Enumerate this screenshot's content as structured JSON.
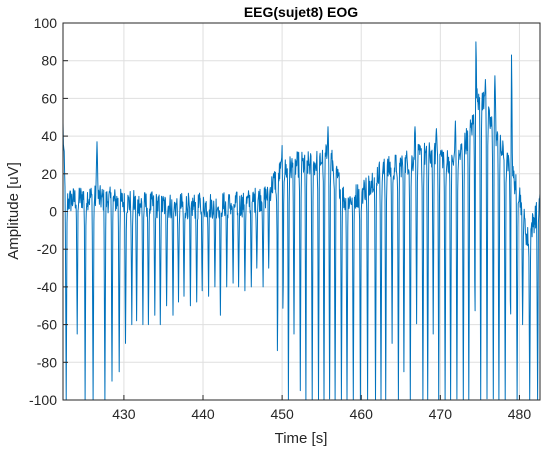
{
  "chart_data": {
    "type": "line",
    "title": "EEG(sujet8) EOG",
    "xlabel": "Time [s]",
    "ylabel": "Amplitude [uV]",
    "xlim": [
      422.3,
      482.6
    ],
    "ylim": [
      -100,
      100
    ],
    "xticks": [
      430,
      440,
      450,
      460,
      470,
      480
    ],
    "yticks": [
      -100,
      -80,
      -60,
      -40,
      -20,
      0,
      20,
      40,
      60,
      80,
      100
    ],
    "grid": true,
    "series": [
      {
        "color": "#0072BD",
        "sample_rate_hz": 20,
        "trough_times": [
          422.7,
          424.1,
          425.1,
          426.1,
          427.6,
          428.5,
          429.4,
          430.2,
          431.0,
          431.6,
          432.4,
          433.1,
          433.9,
          434.6,
          435.4,
          436.2,
          436.9,
          437.6,
          438.4,
          439.2,
          439.9,
          440.7,
          441.5,
          442.2,
          443.0,
          443.8,
          444.5,
          445.3,
          446.1,
          446.8,
          447.6,
          448.3,
          449.4,
          450.1,
          450.8,
          451.5,
          452.3,
          453.0,
          453.8,
          454.6,
          455.3,
          456.0,
          456.7,
          457.5,
          458.2,
          459.0,
          459.9,
          460.8,
          461.8,
          462.5,
          463.1,
          463.9,
          464.7,
          465.4,
          466.2,
          467.0,
          467.8,
          468.4,
          469.1,
          469.8,
          470.6,
          471.3,
          472.1,
          472.9,
          473.6,
          474.4,
          475.1,
          475.9,
          476.7,
          477.4,
          478.2,
          478.9,
          479.7,
          480.4,
          481.3,
          482.3
        ],
        "trough_depths": [
          -100,
          -65,
          -100,
          -100,
          -100,
          -90,
          -85,
          -70,
          -60,
          -58,
          -60,
          -60,
          -55,
          -60,
          -50,
          -55,
          -48,
          -45,
          -50,
          -48,
          -42,
          -45,
          -40,
          -55,
          -40,
          -38,
          -40,
          -42,
          -40,
          -30,
          -40,
          -30,
          -100,
          -80,
          -100,
          -65,
          -95,
          -100,
          -100,
          -100,
          -100,
          -100,
          -100,
          -100,
          -100,
          -100,
          -100,
          -100,
          -100,
          -100,
          -100,
          -70,
          -100,
          -85,
          -100,
          -60,
          -100,
          -100,
          -65,
          -100,
          -100,
          -100,
          -100,
          -100,
          -100,
          -100,
          -100,
          -100,
          -100,
          -100,
          -100,
          -100,
          -100,
          -60,
          -100,
          -100
        ],
        "baseline_anchors": [
          [
            422.3,
            45
          ],
          [
            422.6,
            5
          ],
          [
            425.0,
            8
          ],
          [
            430.0,
            5
          ],
          [
            435.0,
            3
          ],
          [
            440.0,
            3
          ],
          [
            445.0,
            4
          ],
          [
            448.0,
            8
          ],
          [
            449.5,
            20
          ],
          [
            452.0,
            25
          ],
          [
            454.0,
            25
          ],
          [
            456.0,
            30
          ],
          [
            458.0,
            5
          ],
          [
            460.0,
            10
          ],
          [
            462.0,
            20
          ],
          [
            465.0,
            25
          ],
          [
            468.0,
            30
          ],
          [
            470.0,
            30
          ],
          [
            472.0,
            25
          ],
          [
            474.0,
            45
          ],
          [
            475.0,
            65
          ],
          [
            476.0,
            50
          ],
          [
            478.0,
            30
          ],
          [
            480.0,
            10
          ],
          [
            481.0,
            -15
          ],
          [
            482.6,
            5
          ]
        ],
        "notable_peaks": [
          [
            426.6,
            37
          ],
          [
            449.3,
            5
          ],
          [
            450.0,
            35
          ],
          [
            455.8,
            45
          ],
          [
            466.8,
            45
          ],
          [
            469.5,
            44
          ],
          [
            471.9,
            48
          ],
          [
            474.5,
            90
          ],
          [
            475.7,
            70
          ],
          [
            476.9,
            72
          ],
          [
            479.0,
            83
          ]
        ]
      }
    ]
  }
}
